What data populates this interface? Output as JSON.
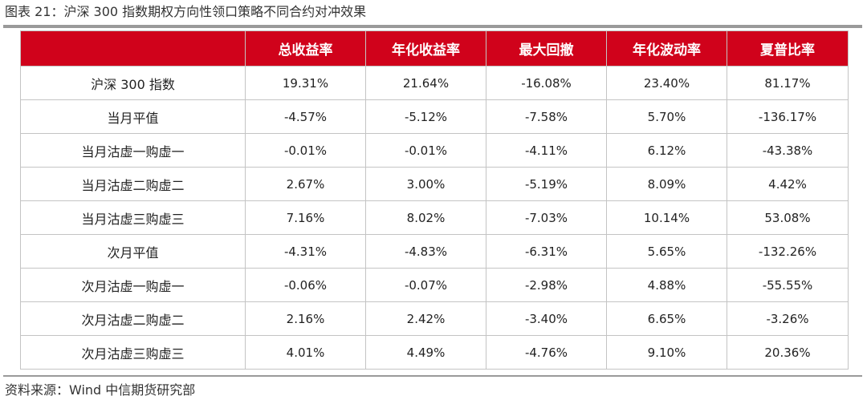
{
  "figure": {
    "title": "图表 21：沪深 300 指数期权方向性领口策略不同合约对冲效果",
    "source": "资料来源：Wind 中信期货研究部"
  },
  "table": {
    "corner": "",
    "columns": [
      "总收益率",
      "年化收益率",
      "最大回撤",
      "年化波动率",
      "夏普比率"
    ],
    "rows": [
      {
        "name": "沪深 300 指数",
        "values": [
          "19.31%",
          "21.64%",
          "-16.08%",
          "23.40%",
          "81.17%"
        ]
      },
      {
        "name": "当月平值",
        "values": [
          "-4.57%",
          "-5.12%",
          "-7.58%",
          "5.70%",
          "-136.17%"
        ]
      },
      {
        "name": "当月沽虚一购虚一",
        "values": [
          "-0.01%",
          "-0.01%",
          "-4.11%",
          "6.12%",
          "-43.38%"
        ]
      },
      {
        "name": "当月沽虚二购虚二",
        "values": [
          "2.67%",
          "3.00%",
          "-5.19%",
          "8.09%",
          "4.42%"
        ]
      },
      {
        "name": "当月沽虚三购虚三",
        "values": [
          "7.16%",
          "8.02%",
          "-7.03%",
          "10.14%",
          "53.08%"
        ]
      },
      {
        "name": "次月平值",
        "values": [
          "-4.31%",
          "-4.83%",
          "-6.31%",
          "5.65%",
          "-132.26%"
        ]
      },
      {
        "name": "次月沽虚一购虚一",
        "values": [
          "-0.06%",
          "-0.07%",
          "-2.98%",
          "4.88%",
          "-55.55%"
        ]
      },
      {
        "name": "次月沽虚二购虚二",
        "values": [
          "2.16%",
          "2.42%",
          "-3.40%",
          "6.65%",
          "-3.26%"
        ]
      },
      {
        "name": "次月沽虚三购虚三",
        "values": [
          "4.01%",
          "4.49%",
          "-4.76%",
          "9.10%",
          "20.36%"
        ]
      }
    ]
  },
  "colors": {
    "header_bg": "#d0021b",
    "header_text": "#ffffff",
    "rule": "#9a9a9a",
    "cell_border": "#c4c4c4"
  }
}
